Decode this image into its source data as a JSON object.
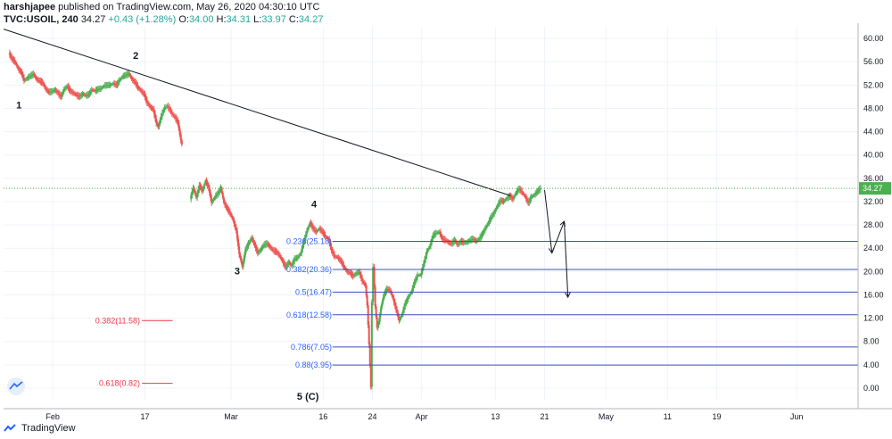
{
  "header": {
    "author": "harshjapee",
    "published": "published on TradingView.com, May 26, 2020 04:30:10 UTC",
    "symbol": "TVC:USOIL, 240",
    "last": "34.27",
    "change": "+0.43 (+1.28%)",
    "open_label": "O:",
    "open": "34.00",
    "high_label": "H:",
    "high": "34.31",
    "low_label": "L:",
    "low": "33.97",
    "close_label": "C:",
    "close": "34.27"
  },
  "footer": {
    "brand": "TradingView"
  },
  "colors": {
    "up": "#26a69a",
    "down": "#ef5350",
    "up_candle": "#4caf50",
    "down_candle": "#ef5350",
    "fib_line": "#3f51b5",
    "fib_text": "#2962ff",
    "red_fib": "#f23645",
    "price_label_bg": "#4caf50",
    "trendline": "#131722"
  },
  "chart_data": {
    "type": "candlestick",
    "symbol": "TVC:USOIL",
    "interval": "240",
    "ylim": [
      -2,
      62
    ],
    "yticks": [
      "0.00",
      "4.00",
      "8.00",
      "12.00",
      "16.00",
      "20.00",
      "24.00",
      "28.00",
      "32.00",
      "36.00",
      "40.00",
      "44.00",
      "48.00",
      "52.00",
      "56.00",
      "60.00"
    ],
    "ytick_values": [
      0,
      4,
      8,
      12,
      16,
      20,
      24,
      28,
      32,
      36,
      40,
      44,
      48,
      52,
      56,
      60
    ],
    "xticks": [
      {
        "label": "Feb",
        "t": 32
      },
      {
        "label": "17",
        "t": 47
      },
      {
        "label": "Mar",
        "t": 61
      },
      {
        "label": "16",
        "t": 76
      },
      {
        "label": "24",
        "t": 84
      },
      {
        "label": "Apr",
        "t": 92
      },
      {
        "label": "13",
        "t": 104
      },
      {
        "label": "21",
        "t": 112
      },
      {
        "label": "May",
        "t": 122
      },
      {
        "label": "11",
        "t": 132
      },
      {
        "label": "19",
        "t": 140
      },
      {
        "label": "Jun",
        "t": 153
      }
    ],
    "t_range": [
      24,
      163
    ],
    "current_price": "34.27",
    "current_value": 34.27,
    "path": [
      [
        24.0,
        58.5
      ],
      [
        25.0,
        57.5
      ],
      [
        25.5,
        56.5
      ],
      [
        26.0,
        56.0
      ],
      [
        26.5,
        54.8
      ],
      [
        27.0,
        54.2
      ],
      [
        27.5,
        52.8
      ],
      [
        28.0,
        53.2
      ],
      [
        28.5,
        53.6
      ],
      [
        29.0,
        53.9
      ],
      [
        29.5,
        53.0
      ],
      [
        30.0,
        52.7
      ],
      [
        30.5,
        52.4
      ],
      [
        31.0,
        51.3
      ],
      [
        31.5,
        50.8
      ],
      [
        32.0,
        50.9
      ],
      [
        32.5,
        51.2
      ],
      [
        33.0,
        50.6
      ],
      [
        33.5,
        50.0
      ],
      [
        34.0,
        51.3
      ],
      [
        34.5,
        51.8
      ],
      [
        35.0,
        51.0
      ],
      [
        35.5,
        50.6
      ],
      [
        36.0,
        50.3
      ],
      [
        36.5,
        50.0
      ],
      [
        37.0,
        50.5
      ],
      [
        37.5,
        50.2
      ],
      [
        38.0,
        50.4
      ],
      [
        38.5,
        51.2
      ],
      [
        39.0,
        51.0
      ],
      [
        39.5,
        51.3
      ],
      [
        40.0,
        51.4
      ],
      [
        40.5,
        51.9
      ],
      [
        41.0,
        52.0
      ],
      [
        41.5,
        52.0
      ],
      [
        42.0,
        52.3
      ],
      [
        42.5,
        52.0
      ],
      [
        43.0,
        52.8
      ],
      [
        43.5,
        53.5
      ],
      [
        44.0,
        53.7
      ],
      [
        44.5,
        54.0
      ],
      [
        45.0,
        53.0
      ],
      [
        45.5,
        52.5
      ],
      [
        46.0,
        51.6
      ],
      [
        46.5,
        51.0
      ],
      [
        47.0,
        50.4
      ],
      [
        47.5,
        49.0
      ],
      [
        48.0,
        48.2
      ],
      [
        48.5,
        47.8
      ],
      [
        49.0,
        45.5
      ],
      [
        49.3,
        44.8
      ],
      [
        49.6,
        46.0
      ],
      [
        50.0,
        47.2
      ],
      [
        50.4,
        48.2
      ],
      [
        50.8,
        48.4
      ],
      [
        51.2,
        47.8
      ],
      [
        51.6,
        47.0
      ],
      [
        52.0,
        46.5
      ],
      [
        52.5,
        45.6
      ],
      [
        53.0,
        42.5
      ],
      [
        53.2,
        41.8
      ],
      [
        54.5,
        32.4
      ],
      [
        55.0,
        34.4
      ],
      [
        55.5,
        32.7
      ],
      [
        56.0,
        34.8
      ],
      [
        56.5,
        33.8
      ],
      [
        57.0,
        35.6
      ],
      [
        57.5,
        34.4
      ],
      [
        58.0,
        31.8
      ],
      [
        58.5,
        32.8
      ],
      [
        59.0,
        33.4
      ],
      [
        59.5,
        34.4
      ],
      [
        60.0,
        31.8
      ],
      [
        60.5,
        30.8
      ],
      [
        61.0,
        30.0
      ],
      [
        61.5,
        28.8
      ],
      [
        62.0,
        27.0
      ],
      [
        62.5,
        23.0
      ],
      [
        63.0,
        20.8
      ],
      [
        63.5,
        23.8
      ],
      [
        64.0,
        24.8
      ],
      [
        64.5,
        25.8
      ],
      [
        65.0,
        24.5
      ],
      [
        65.5,
        23.2
      ],
      [
        66.0,
        23.8
      ],
      [
        66.5,
        24.6
      ],
      [
        67.0,
        24.8
      ],
      [
        67.5,
        24.2
      ],
      [
        68.0,
        23.6
      ],
      [
        68.5,
        23.4
      ],
      [
        69.0,
        22.8
      ],
      [
        69.5,
        21.8
      ],
      [
        70.0,
        20.8
      ],
      [
        70.5,
        21.6
      ],
      [
        71.0,
        21.0
      ],
      [
        71.5,
        22.2
      ],
      [
        72.0,
        22.4
      ],
      [
        72.5,
        23.2
      ],
      [
        73.0,
        25.2
      ],
      [
        73.5,
        27.0
      ],
      [
        74.0,
        28.4
      ],
      [
        74.5,
        27.4
      ],
      [
        75.0,
        26.8
      ],
      [
        75.5,
        27.4
      ],
      [
        76.0,
        26.8
      ],
      [
        76.5,
        26.0
      ],
      [
        77.0,
        25.6
      ],
      [
        77.5,
        23.6
      ],
      [
        78.0,
        22.6
      ],
      [
        78.5,
        22.4
      ],
      [
        79.0,
        21.8
      ],
      [
        79.5,
        20.8
      ],
      [
        80.0,
        20.0
      ],
      [
        80.5,
        19.8
      ],
      [
        81.0,
        19.2
      ],
      [
        81.5,
        19.7
      ],
      [
        82.0,
        19.9
      ],
      [
        82.5,
        18.4
      ],
      [
        83.0,
        17.6
      ],
      [
        83.3,
        14.2
      ],
      [
        83.6,
        7.5
      ],
      [
        83.9,
        0.2
      ],
      [
        84.1,
        14.8
      ],
      [
        84.3,
        20.8
      ],
      [
        84.6,
        14.0
      ],
      [
        84.9,
        10.4
      ],
      [
        85.2,
        11.4
      ],
      [
        85.5,
        13.6
      ],
      [
        86.0,
        16.0
      ],
      [
        86.5,
        17.0
      ],
      [
        87.0,
        16.8
      ],
      [
        87.5,
        15.4
      ],
      [
        88.0,
        13.5
      ],
      [
        88.5,
        11.6
      ],
      [
        89.0,
        12.8
      ],
      [
        89.5,
        14.6
      ],
      [
        90.0,
        15.6
      ],
      [
        90.5,
        16.6
      ],
      [
        91.0,
        18.2
      ],
      [
        91.5,
        19.4
      ],
      [
        92.0,
        19.4
      ],
      [
        92.5,
        21.4
      ],
      [
        93.0,
        23.4
      ],
      [
        93.5,
        24.4
      ],
      [
        94.0,
        26.2
      ],
      [
        94.5,
        26.6
      ],
      [
        95.0,
        26.8
      ],
      [
        95.5,
        25.6
      ],
      [
        96.0,
        25.4
      ],
      [
        96.5,
        25.0
      ],
      [
        97.0,
        24.8
      ],
      [
        97.5,
        25.4
      ],
      [
        98.0,
        24.6
      ],
      [
        98.5,
        25.2
      ],
      [
        99.0,
        25.0
      ],
      [
        99.5,
        25.0
      ],
      [
        100.0,
        25.4
      ],
      [
        100.5,
        25.6
      ],
      [
        101.0,
        25.2
      ],
      [
        101.5,
        25.6
      ],
      [
        102.0,
        26.4
      ],
      [
        102.5,
        27.4
      ],
      [
        103.0,
        28.4
      ],
      [
        103.5,
        29.4
      ],
      [
        104.0,
        30.2
      ],
      [
        104.5,
        31.4
      ],
      [
        105.0,
        32.2
      ],
      [
        105.5,
        32.0
      ],
      [
        106.0,
        32.6
      ],
      [
        106.5,
        33.0
      ],
      [
        107.0,
        32.4
      ],
      [
        107.5,
        33.6
      ],
      [
        108.0,
        34.2
      ],
      [
        108.5,
        33.6
      ],
      [
        109.0,
        32.8
      ],
      [
        109.5,
        31.8
      ],
      [
        110.0,
        32.8
      ],
      [
        110.5,
        33.2
      ],
      [
        111.0,
        33.8
      ],
      [
        111.5,
        34.27
      ]
    ],
    "wave_labels": [
      {
        "text": "1",
        "t": 26.5,
        "v": 48.0
      },
      {
        "text": "2",
        "t": 45.5,
        "v": 56.5
      },
      {
        "text": "3",
        "t": 62.0,
        "v": 19.5
      },
      {
        "text": "4",
        "t": 74.5,
        "v": 31.0
      },
      {
        "text": "5 (C)",
        "t": 73.5,
        "v": -2.0
      }
    ],
    "trendline": {
      "t1": 24.0,
      "v1": 61.6,
      "t2": 106.5,
      "v2": 33.0
    },
    "fib_levels": [
      {
        "label": "0.236(25.18)",
        "value": 25.18
      },
      {
        "label": "0.382(20.36)",
        "value": 20.36
      },
      {
        "label": "0.5(16.47)",
        "value": 16.47
      },
      {
        "label": "0.618(12.58)",
        "value": 12.58
      },
      {
        "label": "0.786(7.05)",
        "value": 7.05
      },
      {
        "label": "0.88(3.95)",
        "value": 3.95
      }
    ],
    "fib_t_range": [
      77.5,
      163
    ],
    "fib_label_t": 77.4,
    "red_fib_levels": [
      {
        "label": "0.382(11.58)",
        "value": 11.58
      },
      {
        "label": "0.618(0.82)",
        "value": 0.82
      }
    ],
    "red_fib_t_range": [
      46.5,
      51.5
    ],
    "projection": [
      [
        112.0,
        34.0
      ],
      [
        113.2,
        23.2
      ],
      [
        115.2,
        28.6
      ],
      [
        115.8,
        15.6
      ]
    ]
  }
}
